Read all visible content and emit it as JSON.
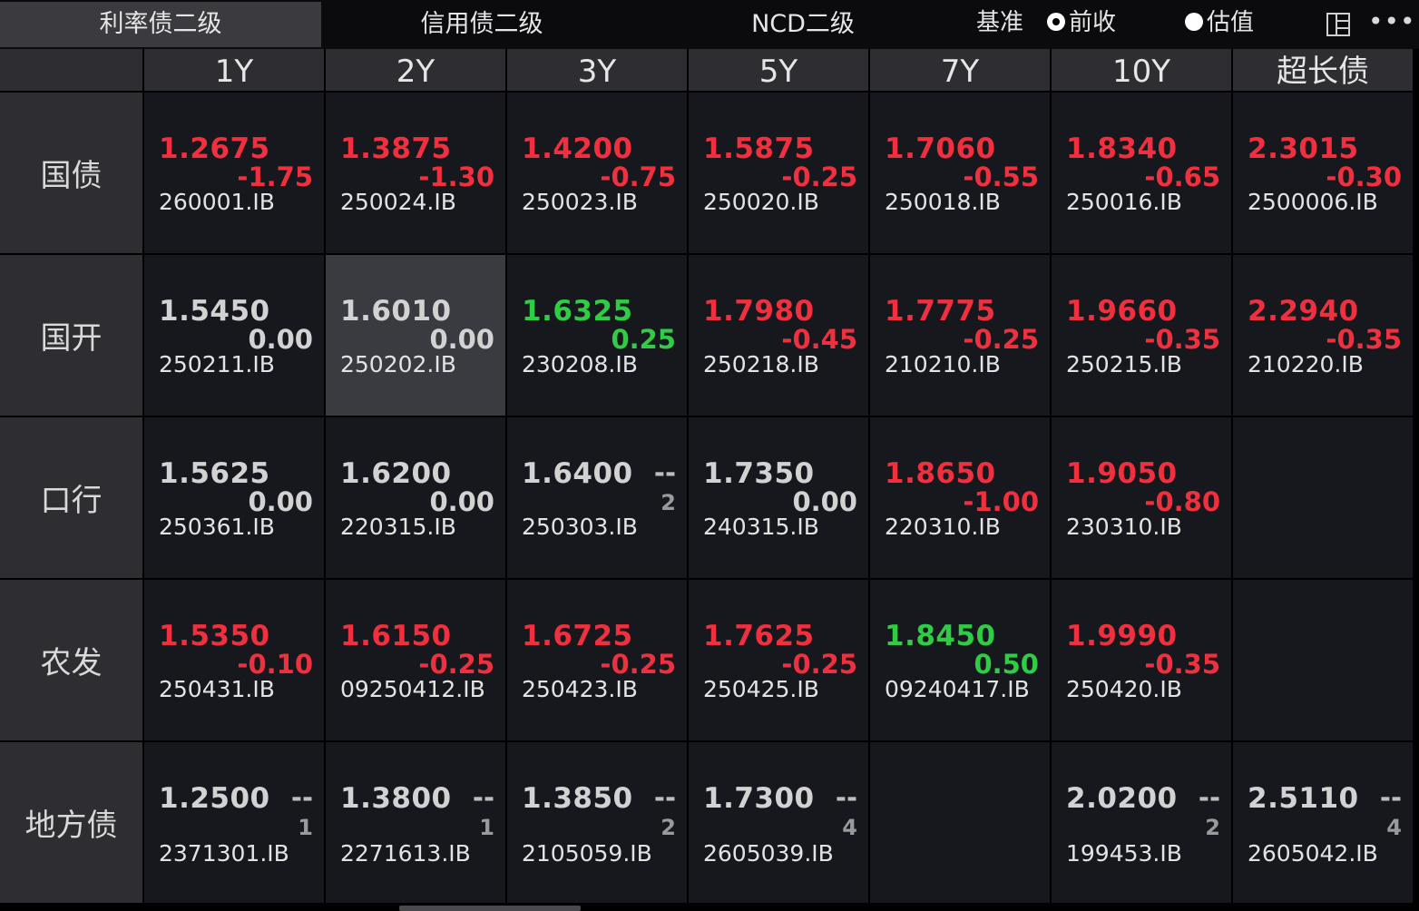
{
  "tabs": [
    "利率债二级",
    "信用债二级",
    "NCD二级"
  ],
  "basis": {
    "label": "基准",
    "options": [
      "前收",
      "估值"
    ],
    "selected": 0
  },
  "columns": [
    "1Y",
    "2Y",
    "3Y",
    "5Y",
    "7Y",
    "10Y",
    "超长债"
  ],
  "rows": [
    {
      "label": "国债",
      "cells": [
        {
          "yield": "1.2675",
          "change": "-1.75",
          "code": "260001.IB",
          "color": "red"
        },
        {
          "yield": "1.3875",
          "change": "-1.30",
          "code": "250024.IB",
          "color": "red"
        },
        {
          "yield": "1.4200",
          "change": "-0.75",
          "code": "250023.IB",
          "color": "red"
        },
        {
          "yield": "1.5875",
          "change": "-0.25",
          "code": "250020.IB",
          "color": "red"
        },
        {
          "yield": "1.7060",
          "change": "-0.55",
          "code": "250018.IB",
          "color": "red"
        },
        {
          "yield": "1.8340",
          "change": "-0.65",
          "code": "250016.IB",
          "color": "red"
        },
        {
          "yield": "2.3015",
          "change": "-0.30",
          "code": "2500006.IB",
          "color": "red"
        }
      ]
    },
    {
      "label": "国开",
      "cells": [
        {
          "yield": "1.5450",
          "change": "0.00",
          "code": "250211.IB",
          "color": "white"
        },
        {
          "yield": "1.6010",
          "change": "0.00",
          "code": "250202.IB",
          "color": "white",
          "hover": true
        },
        {
          "yield": "1.6325",
          "change": "0.25",
          "code": "230208.IB",
          "color": "green"
        },
        {
          "yield": "1.7980",
          "change": "-0.45",
          "code": "250218.IB",
          "color": "red"
        },
        {
          "yield": "1.7775",
          "change": "-0.25",
          "code": "210210.IB",
          "color": "red"
        },
        {
          "yield": "1.9660",
          "change": "-0.35",
          "code": "250215.IB",
          "color": "red"
        },
        {
          "yield": "2.2940",
          "change": "-0.35",
          "code": "210220.IB",
          "color": "red"
        }
      ]
    },
    {
      "label": "口行",
      "cells": [
        {
          "yield": "1.5625",
          "change": "0.00",
          "code": "250361.IB",
          "color": "white"
        },
        {
          "yield": "1.6200",
          "change": "0.00",
          "code": "220315.IB",
          "color": "white"
        },
        {
          "yield": "1.6400",
          "change": "--",
          "count": "2",
          "code": "250303.IB",
          "color": "white"
        },
        {
          "yield": "1.7350",
          "change": "0.00",
          "code": "240315.IB",
          "color": "white"
        },
        {
          "yield": "1.8650",
          "change": "-1.00",
          "code": "220310.IB",
          "color": "red"
        },
        {
          "yield": "1.9050",
          "change": "-0.80",
          "code": "230310.IB",
          "color": "red"
        },
        null
      ]
    },
    {
      "label": "农发",
      "cells": [
        {
          "yield": "1.5350",
          "change": "-0.10",
          "code": "250431.IB",
          "color": "red"
        },
        {
          "yield": "1.6150",
          "change": "-0.25",
          "code": "09250412.IB",
          "color": "red"
        },
        {
          "yield": "1.6725",
          "change": "-0.25",
          "code": "250423.IB",
          "color": "red"
        },
        {
          "yield": "1.7625",
          "change": "-0.25",
          "code": "250425.IB",
          "color": "red"
        },
        {
          "yield": "1.8450",
          "change": "0.50",
          "code": "09240417.IB",
          "color": "green"
        },
        {
          "yield": "1.9990",
          "change": "-0.35",
          "code": "250420.IB",
          "color": "red"
        },
        null
      ]
    },
    {
      "label": "地方债",
      "cells": [
        {
          "yield": "1.2500",
          "change": "--",
          "count": "1",
          "code": "2371301.IB",
          "color": "white"
        },
        {
          "yield": "1.3800",
          "change": "--",
          "count": "1",
          "code": "2271613.IB",
          "color": "white"
        },
        {
          "yield": "1.3850",
          "change": "--",
          "count": "2",
          "code": "2105059.IB",
          "color": "white"
        },
        {
          "yield": "1.7300",
          "change": "--",
          "count": "4",
          "code": "2605039.IB",
          "color": "white"
        },
        null,
        {
          "yield": "2.0200",
          "change": "--",
          "count": "2",
          "code": "199453.IB",
          "color": "white"
        },
        {
          "yield": "2.5110",
          "change": "--",
          "count": "4",
          "code": "2605042.IB",
          "color": "white"
        }
      ]
    }
  ],
  "colors": {
    "red": "#f0303f",
    "green": "#2fcc45",
    "white": "#d2d2d2",
    "cell_bg": "#16181d",
    "header_bg": "#2e2e32"
  },
  "icons": [
    "layout-icon",
    "more-icon"
  ]
}
